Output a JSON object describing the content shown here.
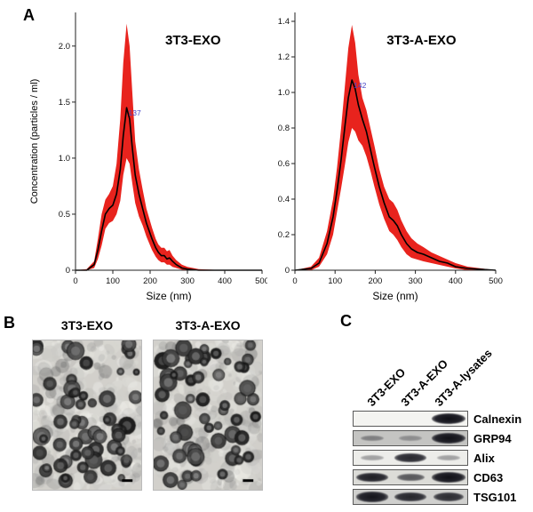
{
  "figure": {
    "panel_a_label": "A",
    "panel_b_label": "B",
    "panel_c_label": "C"
  },
  "chart_data": [
    {
      "type": "area",
      "title": "3T3-EXO",
      "xlabel": "Size (nm)",
      "ylabel": "Concentration (particles / ml)",
      "xlim": [
        0,
        500
      ],
      "ylim": [
        0,
        2.3
      ],
      "xticks": [
        0,
        100,
        200,
        300,
        400,
        500
      ],
      "ytick_values": [
        0,
        0.5,
        1.0,
        1.5,
        2.0
      ],
      "ytick_labels": [
        "0",
        "0.5",
        "1.0",
        "1.5",
        "2.0"
      ],
      "peak_label": "137",
      "peak_x": 137,
      "peak_y": 1.45,
      "band_color": "#e8231d",
      "line_color": "#000000",
      "peak_color": "#4646c8",
      "x": [
        0,
        30,
        50,
        60,
        70,
        80,
        90,
        100,
        110,
        120,
        128,
        137,
        145,
        152,
        160,
        170,
        180,
        190,
        205,
        215,
        222,
        230,
        238,
        245,
        252,
        260,
        270,
        285,
        300,
        330,
        400,
        500
      ],
      "mean": [
        0,
        0,
        0.05,
        0.18,
        0.35,
        0.5,
        0.55,
        0.58,
        0.68,
        0.9,
        1.2,
        1.45,
        1.35,
        1.1,
        0.85,
        0.68,
        0.55,
        0.42,
        0.28,
        0.2,
        0.16,
        0.13,
        0.13,
        0.1,
        0.11,
        0.08,
        0.05,
        0.02,
        0.01,
        0,
        0,
        0
      ],
      "upper": [
        0,
        0.01,
        0.08,
        0.28,
        0.5,
        0.63,
        0.68,
        0.75,
        0.95,
        1.35,
        1.85,
        2.2,
        2.0,
        1.6,
        1.15,
        0.9,
        0.72,
        0.55,
        0.38,
        0.28,
        0.23,
        0.2,
        0.2,
        0.17,
        0.18,
        0.13,
        0.09,
        0.05,
        0.03,
        0.01,
        0,
        0
      ],
      "lower": [
        0,
        0,
        0.02,
        0.1,
        0.22,
        0.37,
        0.42,
        0.44,
        0.5,
        0.62,
        0.85,
        1.0,
        0.95,
        0.78,
        0.6,
        0.48,
        0.4,
        0.3,
        0.18,
        0.12,
        0.09,
        0.07,
        0.07,
        0.05,
        0.05,
        0.03,
        0.02,
        0.005,
        0,
        0,
        0,
        0
      ]
    },
    {
      "type": "area",
      "title": "3T3-A-EXO",
      "xlabel": "Size (nm)",
      "ylabel": "",
      "xlim": [
        0,
        500
      ],
      "ylim": [
        0,
        1.45
      ],
      "xticks": [
        0,
        100,
        200,
        300,
        400,
        500
      ],
      "ytick_values": [
        0,
        0.2,
        0.4,
        0.6,
        0.8,
        1.0,
        1.2,
        1.4
      ],
      "ytick_labels": [
        "0",
        "0.2",
        "0.4",
        "0.6",
        "0.8",
        "1.0",
        "1.2",
        "1.4"
      ],
      "peak_label": "142",
      "peak_x": 142,
      "peak_y": 1.07,
      "band_color": "#e8231d",
      "line_color": "#000000",
      "peak_color": "#4646c8",
      "x": [
        0,
        40,
        60,
        80,
        95,
        105,
        115,
        125,
        133,
        142,
        150,
        158,
        168,
        178,
        188,
        198,
        210,
        222,
        235,
        245,
        255,
        265,
        278,
        290,
        305,
        320,
        340,
        360,
        380,
        400,
        430,
        500
      ],
      "mean": [
        0,
        0.01,
        0.04,
        0.15,
        0.3,
        0.45,
        0.62,
        0.82,
        0.97,
        1.07,
        1.02,
        0.93,
        0.85,
        0.78,
        0.68,
        0.58,
        0.47,
        0.38,
        0.3,
        0.28,
        0.25,
        0.2,
        0.15,
        0.12,
        0.1,
        0.09,
        0.07,
        0.05,
        0.04,
        0.02,
        0.01,
        0
      ],
      "upper": [
        0,
        0.02,
        0.07,
        0.22,
        0.4,
        0.58,
        0.8,
        1.05,
        1.25,
        1.38,
        1.28,
        1.1,
        0.97,
        0.9,
        0.8,
        0.7,
        0.57,
        0.47,
        0.4,
        0.38,
        0.34,
        0.28,
        0.22,
        0.18,
        0.15,
        0.13,
        0.1,
        0.08,
        0.06,
        0.04,
        0.02,
        0
      ],
      "lower": [
        0,
        0,
        0.02,
        0.09,
        0.2,
        0.33,
        0.46,
        0.6,
        0.72,
        0.8,
        0.78,
        0.73,
        0.7,
        0.64,
        0.56,
        0.47,
        0.37,
        0.29,
        0.22,
        0.2,
        0.17,
        0.13,
        0.09,
        0.07,
        0.06,
        0.05,
        0.04,
        0.03,
        0.02,
        0.01,
        0,
        0
      ]
    }
  ],
  "panel_b": {
    "images": [
      {
        "label": "3T3-EXO"
      },
      {
        "label": "3T3-A-EXO"
      }
    ]
  },
  "panel_c": {
    "lanes": [
      "3T3-EXO",
      "3T3-A-EXO",
      "3T3-A-lysates"
    ],
    "blots": [
      {
        "label": "Calnexin",
        "bg": "#f4f4f1",
        "bands": [
          0.04,
          0.04,
          1.0
        ]
      },
      {
        "label": "GRP94",
        "bg": "#c4c4c2",
        "bands": [
          0.18,
          0.08,
          1.0
        ]
      },
      {
        "label": "Alix",
        "bg": "#ededea",
        "bands": [
          0.12,
          0.8,
          0.12
        ]
      },
      {
        "label": "CD63",
        "bg": "#dcdcd8",
        "bands": [
          0.85,
          0.5,
          0.95
        ]
      },
      {
        "label": "TSG101",
        "bg": "#d0d0ce",
        "bands": [
          0.9,
          0.8,
          0.75
        ]
      }
    ]
  }
}
